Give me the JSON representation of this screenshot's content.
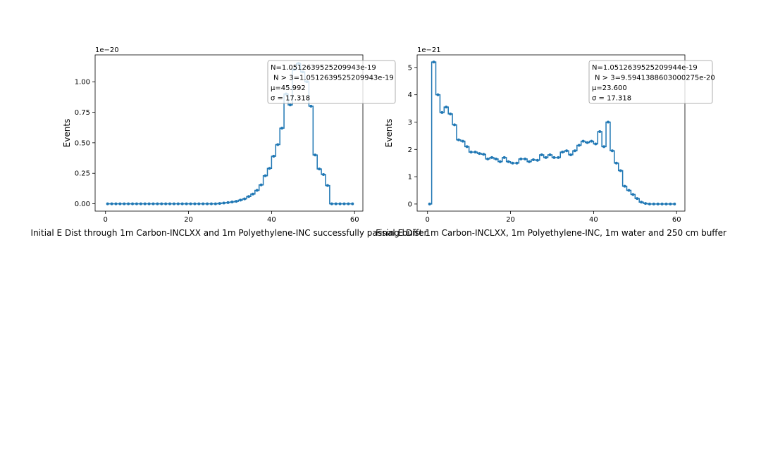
{
  "chart_data": [
    {
      "type": "line",
      "step": "mid",
      "xlabel": "Initial E Dist through 1m Carbon-INCLXX and 1m Polyethylene-INC successfully passing buffer",
      "ylabel": "Events",
      "offset_label": "1e−20",
      "xlim": [
        -2.5,
        62
      ],
      "ylim": [
        -0.06,
        1.22
      ],
      "xticks": [
        0,
        20,
        40,
        60
      ],
      "xtick_labels": [
        "0",
        "20",
        "40",
        "60"
      ],
      "yticks": [
        0,
        0.25,
        0.5,
        0.75,
        1.0
      ],
      "ytick_labels": [
        "0.00",
        "0.25",
        "0.50",
        "0.75",
        "1.00"
      ],
      "legend": {
        "placement": "top-right",
        "lines": [
          "N=1.0512639525209943e-19",
          "N > 3=1.0512639525209943e-19",
          "μ=45.992",
          "σ = 17.318"
        ]
      },
      "color": "#1f77b4",
      "x": [
        0.5,
        1.5,
        2.5,
        3.5,
        4.5,
        5.5,
        6.5,
        7.5,
        8.5,
        9.5,
        10.5,
        11.5,
        12.5,
        13.5,
        14.5,
        15.5,
        16.5,
        17.5,
        18.5,
        19.5,
        20.5,
        21.5,
        22.5,
        23.5,
        24.5,
        25.5,
        26.5,
        27.5,
        28.5,
        29.5,
        30.5,
        31.5,
        32.5,
        33.5,
        34.5,
        35.5,
        36.5,
        37.5,
        38.5,
        39.5,
        40.5,
        41.5,
        42.5,
        43.5,
        44.5,
        45.5,
        46.5,
        47.5,
        48.5,
        49.5,
        50.5,
        51.5,
        52.5,
        53.5,
        54.5,
        55.5,
        56.5,
        57.5,
        58.5,
        59.5
      ],
      "y": [
        0,
        0,
        0,
        0,
        0,
        0,
        0,
        0,
        0,
        0,
        0,
        0,
        0,
        0,
        0,
        0,
        0,
        0,
        0,
        0,
        0,
        0,
        0,
        0,
        0,
        0,
        0,
        0.003,
        0.006,
        0.01,
        0.015,
        0.02,
        0.03,
        0.04,
        0.06,
        0.08,
        0.11,
        0.155,
        0.23,
        0.29,
        0.39,
        0.485,
        0.62,
        0.9,
        0.81,
        1.1,
        1.15,
        1.08,
        1.0,
        0.8,
        0.4,
        0.285,
        0.24,
        0.15,
        0,
        0,
        0,
        0,
        0,
        0
      ]
    },
    {
      "type": "line",
      "step": "mid",
      "xlabel": "Final E Dist 1m Carbon-INCLXX, 1m Polyethylene-INC, 1m water and 250 cm buffer",
      "ylabel": "Events",
      "offset_label": "1e−21",
      "xlim": [
        -2.5,
        62
      ],
      "ylim": [
        -0.26,
        5.46
      ],
      "xticks": [
        0,
        20,
        40,
        60
      ],
      "xtick_labels": [
        "0",
        "20",
        "40",
        "60"
      ],
      "yticks": [
        0,
        1,
        2,
        3,
        4,
        5
      ],
      "ytick_labels": [
        "0",
        "1",
        "2",
        "3",
        "4",
        "5"
      ],
      "legend": {
        "placement": "top-right",
        "lines": [
          "N=1.0512639525209944e-19",
          "N > 3=9.5941388603000275e-20",
          "μ=23.600",
          "σ = 17.318"
        ]
      },
      "color": "#1f77b4",
      "x": [
        0.5,
        1.5,
        2.5,
        3.5,
        4.5,
        5.5,
        6.5,
        7.5,
        8.5,
        9.5,
        10.5,
        11.5,
        12.5,
        13.5,
        14.5,
        15.5,
        16.5,
        17.5,
        18.5,
        19.5,
        20.5,
        21.5,
        22.5,
        23.5,
        24.5,
        25.5,
        26.5,
        27.5,
        28.5,
        29.5,
        30.5,
        31.5,
        32.5,
        33.5,
        34.5,
        35.5,
        36.5,
        37.5,
        38.5,
        39.5,
        40.5,
        41.5,
        42.5,
        43.5,
        44.5,
        45.5,
        46.5,
        47.5,
        48.5,
        49.5,
        50.5,
        51.5,
        52.5,
        53.5,
        54.5,
        55.5,
        56.5,
        57.5,
        58.5,
        59.5
      ],
      "y": [
        0,
        5.2,
        4.0,
        3.35,
        3.55,
        3.3,
        2.9,
        2.35,
        2.3,
        2.1,
        1.9,
        1.9,
        1.85,
        1.82,
        1.65,
        1.7,
        1.65,
        1.55,
        1.7,
        1.55,
        1.5,
        1.5,
        1.65,
        1.65,
        1.55,
        1.62,
        1.6,
        1.8,
        1.7,
        1.8,
        1.7,
        1.7,
        1.9,
        1.95,
        1.8,
        1.95,
        2.15,
        2.3,
        2.25,
        2.3,
        2.2,
        2.65,
        2.1,
        3.0,
        1.95,
        1.5,
        1.22,
        0.65,
        0.5,
        0.35,
        0.2,
        0.07,
        0.02,
        0,
        0,
        0,
        0,
        0,
        0,
        0
      ]
    }
  ]
}
